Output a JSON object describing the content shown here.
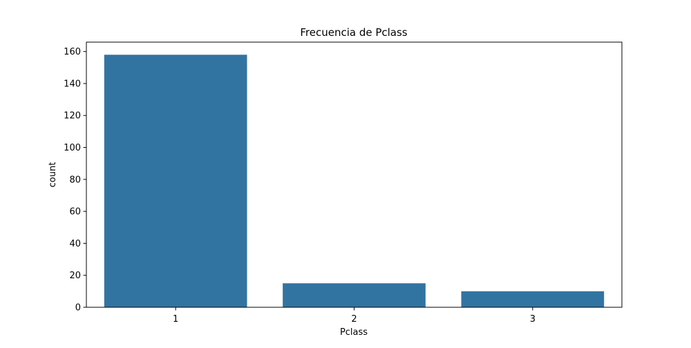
{
  "chart_data": {
    "type": "bar",
    "title": "Frecuencia de Pclass",
    "xlabel": "Pclass",
    "ylabel": "count",
    "categories": [
      "1",
      "2",
      "3"
    ],
    "values": [
      158,
      15,
      10
    ],
    "ylim": [
      0,
      165.9
    ],
    "yticks": [
      0,
      20,
      40,
      60,
      80,
      100,
      120,
      140,
      160
    ],
    "grid": false,
    "bar_color": "#3274a1"
  }
}
